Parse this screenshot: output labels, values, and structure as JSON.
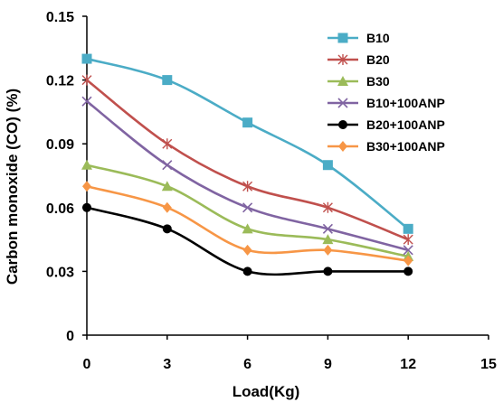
{
  "chart_data": {
    "type": "line",
    "title": "",
    "xlabel": "Load(Kg)",
    "ylabel": "Carbon monoxide (CO) (%)",
    "xlim": [
      0,
      15
    ],
    "ylim": [
      0,
      0.15
    ],
    "xticks": [
      "0",
      "3",
      "6",
      "9",
      "12",
      "15"
    ],
    "yticks": [
      "0",
      "0.03",
      "0.06",
      "0.09",
      "0.12",
      "0.15"
    ],
    "grid": false,
    "smooth": true,
    "legend_position": "top-right",
    "x": [
      0,
      3,
      6,
      9,
      12
    ],
    "series": [
      {
        "name": "B10",
        "values": [
          0.13,
          0.12,
          0.1,
          0.08,
          0.05
        ],
        "color": "#4BACC6",
        "marker": "square"
      },
      {
        "name": "B20",
        "values": [
          0.12,
          0.09,
          0.07,
          0.06,
          0.045
        ],
        "color": "#C0504D",
        "marker": "asterisk"
      },
      {
        "name": "B30",
        "values": [
          0.08,
          0.07,
          0.05,
          0.045,
          0.037
        ],
        "color": "#9BBB59",
        "marker": "triangle"
      },
      {
        "name": "B10+100ANP",
        "values": [
          0.11,
          0.08,
          0.06,
          0.05,
          0.04
        ],
        "color": "#8064A2",
        "marker": "x"
      },
      {
        "name": "B20+100ANP",
        "values": [
          0.06,
          0.05,
          0.03,
          0.03,
          0.03
        ],
        "color": "#000000",
        "marker": "circle"
      },
      {
        "name": "B30+100ANP",
        "values": [
          0.07,
          0.06,
          0.04,
          0.04,
          0.035
        ],
        "color": "#F79646",
        "marker": "diamond"
      }
    ]
  }
}
